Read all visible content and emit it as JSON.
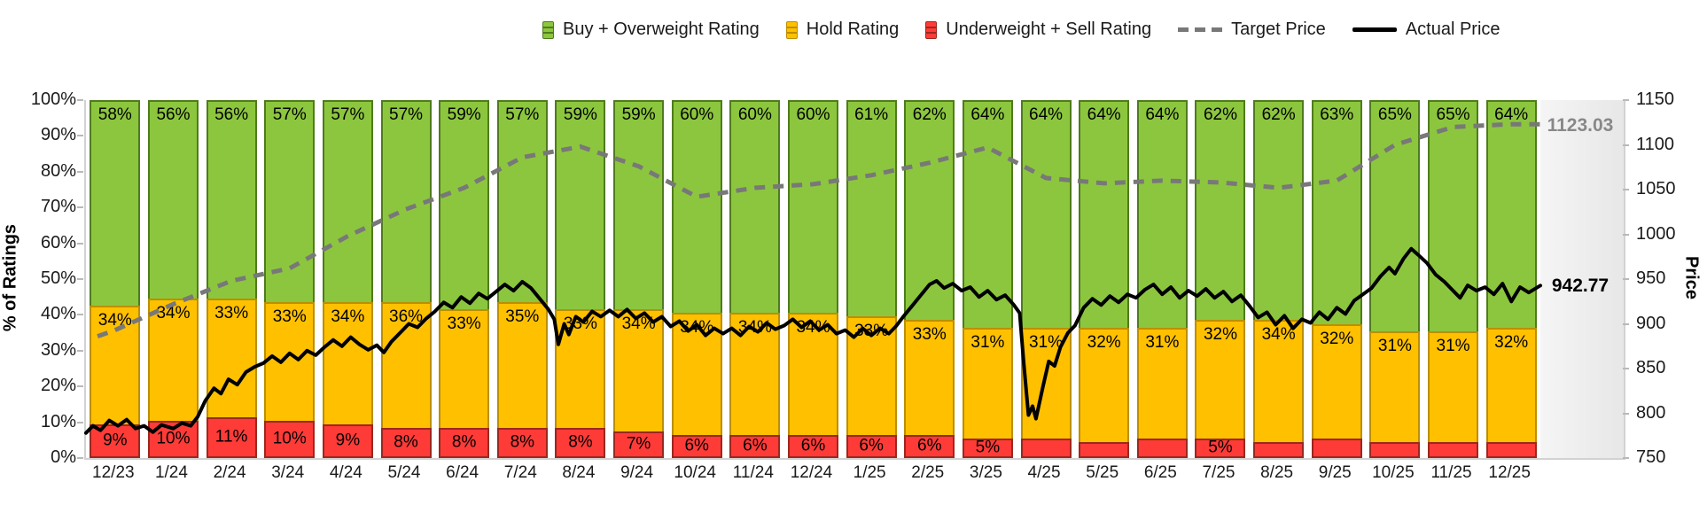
{
  "legend": {
    "items": [
      {
        "label": "Buy + Overweight Rating",
        "marker": "bar",
        "color": "#8cc63e",
        "border": "#4f7b1d"
      },
      {
        "label": "Hold Rating",
        "marker": "bar",
        "color": "#ffc000",
        "border": "#bc8f00"
      },
      {
        "label": "Underweight + Sell Rating",
        "marker": "bar",
        "color": "#ff3b38",
        "border": "#9c271e"
      },
      {
        "label": "Target Price",
        "marker": "dashed-line",
        "color": "#787878"
      },
      {
        "label": "Actual Price",
        "marker": "solid-line",
        "color": "#000000"
      }
    ]
  },
  "left_axis": {
    "title": "% of Ratings",
    "ticks": [
      "100%",
      "90%",
      "80%",
      "70%",
      "60%",
      "50%",
      "40%",
      "30%",
      "20%",
      "10%",
      "0%"
    ]
  },
  "right_axis": {
    "title": "Price",
    "ticks": [
      "1150",
      "1100",
      "1050",
      "1000",
      "950",
      "900",
      "850",
      "800",
      "750"
    ]
  },
  "end_labels": {
    "target": "1123.03",
    "actual": "942.77"
  },
  "chart_data": {
    "type": "stacked-bar+line",
    "categories": [
      "12/23",
      "1/24",
      "2/24",
      "3/24",
      "4/24",
      "5/24",
      "6/24",
      "7/24",
      "8/24",
      "9/24",
      "10/24",
      "11/24",
      "12/24",
      "1/25",
      "2/25",
      "3/25",
      "4/25",
      "5/25",
      "6/25",
      "7/25",
      "8/25",
      "9/25",
      "10/25",
      "11/25",
      "12/25"
    ],
    "left_ylabel": "% of Ratings",
    "right_ylabel": "Price",
    "left_ylim": [
      0,
      100
    ],
    "right_ylim": [
      750,
      1150
    ],
    "grid": false,
    "legend_position": "top",
    "series": [
      {
        "name": "Buy + Overweight Rating",
        "type": "bar",
        "color": "#8cc63e",
        "values": [
          58,
          56,
          56,
          57,
          57,
          57,
          59,
          57,
          59,
          59,
          60,
          60,
          60,
          61,
          62,
          64,
          64,
          64,
          64,
          62,
          62,
          63,
          65,
          65,
          64
        ]
      },
      {
        "name": "Hold Rating",
        "type": "bar",
        "color": "#ffc000",
        "values": [
          34,
          34,
          33,
          33,
          34,
          36,
          33,
          35,
          33,
          34,
          34,
          34,
          34,
          33,
          33,
          31,
          31,
          32,
          31,
          32,
          34,
          32,
          31,
          31,
          32
        ]
      },
      {
        "name": "Underweight + Sell Rating",
        "type": "bar",
        "color": "#ff3b38",
        "values": [
          9,
          10,
          11,
          10,
          9,
          8,
          8,
          8,
          8,
          7,
          6,
          6,
          6,
          6,
          6,
          5,
          5,
          4,
          5,
          5,
          4,
          5,
          4,
          4,
          4
        ],
        "label_shown": [
          true,
          true,
          true,
          true,
          true,
          true,
          true,
          true,
          true,
          true,
          true,
          true,
          true,
          true,
          true,
          true,
          false,
          false,
          false,
          true,
          false,
          false,
          false,
          false,
          false
        ]
      },
      {
        "name": "Target Price",
        "type": "line",
        "style": "dashed",
        "color": "#787878",
        "axis": "right",
        "monthly_values": [
          893,
          922,
          948,
          962,
          998,
          1028,
          1052,
          1086,
          1098,
          1076,
          1042,
          1052,
          1056,
          1066,
          1080,
          1097,
          1063,
          1057,
          1060,
          1058,
          1052,
          1060,
          1100,
          1120,
          1123.03
        ]
      },
      {
        "name": "Actual Price",
        "type": "line",
        "style": "solid",
        "color": "#000000",
        "axis": "right",
        "points": [
          [
            0,
            778
          ],
          [
            0.12,
            786
          ],
          [
            0.25,
            781
          ],
          [
            0.4,
            792
          ],
          [
            0.55,
            786
          ],
          [
            0.7,
            793
          ],
          [
            0.85,
            783
          ],
          [
            1,
            786
          ],
          [
            1.15,
            779
          ],
          [
            1.3,
            787
          ],
          [
            1.5,
            783
          ],
          [
            1.65,
            789
          ],
          [
            1.8,
            786
          ],
          [
            1.92,
            796
          ],
          [
            2.05,
            814
          ],
          [
            2.2,
            828
          ],
          [
            2.32,
            822
          ],
          [
            2.45,
            838
          ],
          [
            2.6,
            832
          ],
          [
            2.75,
            846
          ],
          [
            2.9,
            852
          ],
          [
            3.05,
            856
          ],
          [
            3.2,
            864
          ],
          [
            3.35,
            857
          ],
          [
            3.5,
            867
          ],
          [
            3.65,
            860
          ],
          [
            3.8,
            870
          ],
          [
            3.95,
            865
          ],
          [
            4.1,
            874
          ],
          [
            4.25,
            882
          ],
          [
            4.4,
            875
          ],
          [
            4.55,
            885
          ],
          [
            4.7,
            877
          ],
          [
            4.85,
            871
          ],
          [
            5,
            876
          ],
          [
            5.12,
            868
          ],
          [
            5.25,
            880
          ],
          [
            5.4,
            890
          ],
          [
            5.55,
            900
          ],
          [
            5.7,
            896
          ],
          [
            5.85,
            906
          ],
          [
            6,
            914
          ],
          [
            6.15,
            924
          ],
          [
            6.3,
            918
          ],
          [
            6.45,
            930
          ],
          [
            6.6,
            923
          ],
          [
            6.75,
            934
          ],
          [
            6.9,
            928
          ],
          [
            7.05,
            936
          ],
          [
            7.2,
            944
          ],
          [
            7.35,
            937
          ],
          [
            7.5,
            947
          ],
          [
            7.65,
            940
          ],
          [
            7.8,
            928
          ],
          [
            7.95,
            916
          ],
          [
            8.05,
            905
          ],
          [
            8.12,
            877
          ],
          [
            8.22,
            900
          ],
          [
            8.3,
            888
          ],
          [
            8.42,
            908
          ],
          [
            8.55,
            902
          ],
          [
            8.7,
            914
          ],
          [
            8.85,
            908
          ],
          [
            9,
            915
          ],
          [
            9.15,
            908
          ],
          [
            9.3,
            916
          ],
          [
            9.45,
            906
          ],
          [
            9.6,
            912
          ],
          [
            9.75,
            902
          ],
          [
            9.9,
            908
          ],
          [
            10.05,
            897
          ],
          [
            10.2,
            903
          ],
          [
            10.35,
            892
          ],
          [
            10.5,
            899
          ],
          [
            10.65,
            887
          ],
          [
            10.8,
            895
          ],
          [
            10.95,
            889
          ],
          [
            11.1,
            895
          ],
          [
            11.25,
            887
          ],
          [
            11.4,
            897
          ],
          [
            11.55,
            891
          ],
          [
            11.7,
            901
          ],
          [
            11.85,
            894
          ],
          [
            12,
            898
          ],
          [
            12.15,
            905
          ],
          [
            12.3,
            896
          ],
          [
            12.45,
            903
          ],
          [
            12.6,
            893
          ],
          [
            12.75,
            899
          ],
          [
            12.9,
            889
          ],
          [
            13.05,
            893
          ],
          [
            13.2,
            885
          ],
          [
            13.35,
            895
          ],
          [
            13.5,
            887
          ],
          [
            13.65,
            895
          ],
          [
            13.8,
            889
          ],
          [
            13.92,
            897
          ],
          [
            14.05,
            908
          ],
          [
            14.2,
            920
          ],
          [
            14.35,
            932
          ],
          [
            14.5,
            944
          ],
          [
            14.62,
            948
          ],
          [
            14.75,
            940
          ],
          [
            14.9,
            945
          ],
          [
            15.05,
            937
          ],
          [
            15.2,
            941
          ],
          [
            15.35,
            930
          ],
          [
            15.5,
            937
          ],
          [
            15.65,
            927
          ],
          [
            15.8,
            932
          ],
          [
            15.95,
            921
          ],
          [
            16.05,
            912
          ],
          [
            16.12,
            856
          ],
          [
            16.2,
            798
          ],
          [
            16.27,
            808
          ],
          [
            16.33,
            794
          ],
          [
            16.45,
            830
          ],
          [
            16.55,
            858
          ],
          [
            16.65,
            853
          ],
          [
            16.75,
            874
          ],
          [
            16.88,
            890
          ],
          [
            17,
            898
          ],
          [
            17.15,
            918
          ],
          [
            17.3,
            928
          ],
          [
            17.45,
            921
          ],
          [
            17.6,
            931
          ],
          [
            17.75,
            924
          ],
          [
            17.9,
            933
          ],
          [
            18.05,
            929
          ],
          [
            18.2,
            938
          ],
          [
            18.35,
            944
          ],
          [
            18.5,
            933
          ],
          [
            18.65,
            941
          ],
          [
            18.8,
            929
          ],
          [
            18.95,
            937
          ],
          [
            19.1,
            931
          ],
          [
            19.25,
            939
          ],
          [
            19.4,
            929
          ],
          [
            19.55,
            936
          ],
          [
            19.7,
            925
          ],
          [
            19.85,
            932
          ],
          [
            20,
            920
          ],
          [
            20.15,
            907
          ],
          [
            20.3,
            913
          ],
          [
            20.45,
            899
          ],
          [
            20.6,
            909
          ],
          [
            20.75,
            895
          ],
          [
            20.9,
            905
          ],
          [
            21.05,
            901
          ],
          [
            21.2,
            913
          ],
          [
            21.35,
            905
          ],
          [
            21.5,
            918
          ],
          [
            21.65,
            911
          ],
          [
            21.8,
            926
          ],
          [
            21.95,
            933
          ],
          [
            22.1,
            940
          ],
          [
            22.25,
            953
          ],
          [
            22.4,
            963
          ],
          [
            22.5,
            956
          ],
          [
            22.65,
            973
          ],
          [
            22.78,
            984
          ],
          [
            22.9,
            977
          ],
          [
            23.05,
            968
          ],
          [
            23.2,
            955
          ],
          [
            23.35,
            947
          ],
          [
            23.5,
            937
          ],
          [
            23.62,
            929
          ],
          [
            23.75,
            943
          ],
          [
            23.9,
            937
          ],
          [
            24.05,
            941
          ],
          [
            24.2,
            933
          ],
          [
            24.35,
            945
          ],
          [
            24.5,
            925
          ],
          [
            24.65,
            941
          ],
          [
            24.8,
            935
          ],
          [
            25,
            942.77
          ]
        ]
      }
    ],
    "end_value_labels": {
      "target_price": 1123.03,
      "actual_price": 942.77
    }
  }
}
